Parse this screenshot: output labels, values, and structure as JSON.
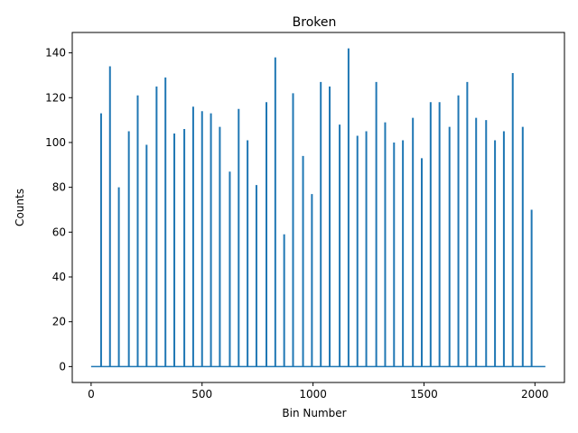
{
  "chart_data": {
    "type": "line",
    "title": "Broken",
    "xlabel": "Bin Number",
    "ylabel": "Counts",
    "xlim": [
      -85,
      2133
    ],
    "ylim": [
      -7.1,
      149.1
    ],
    "xticks": [
      0,
      500,
      1000,
      1500,
      2000
    ],
    "yticks": [
      0,
      20,
      40,
      60,
      80,
      100,
      120,
      140
    ],
    "baseline": {
      "x_start": 0,
      "x_end": 2047,
      "value": 0
    },
    "series_color": "#1f77b4",
    "grid": false,
    "legend": "none",
    "peaks": {
      "x": [
        45,
        85,
        125,
        170,
        210,
        250,
        295,
        335,
        375,
        420,
        460,
        500,
        540,
        580,
        625,
        665,
        705,
        745,
        790,
        830,
        870,
        910,
        955,
        995,
        1035,
        1075,
        1120,
        1160,
        1200,
        1240,
        1285,
        1325,
        1365,
        1405,
        1450,
        1490,
        1530,
        1570,
        1615,
        1655,
        1695,
        1735,
        1780,
        1820,
        1860,
        1900,
        1945,
        1985
      ],
      "values": [
        113,
        134,
        80,
        105,
        121,
        99,
        125,
        129,
        104,
        106,
        116,
        114,
        113,
        107,
        87,
        115,
        101,
        81,
        118,
        138,
        59,
        122,
        94,
        77,
        127,
        125,
        108,
        142,
        103,
        105,
        127,
        109,
        100,
        101,
        111,
        93,
        118,
        118,
        107,
        121,
        127,
        111,
        110,
        101,
        105,
        131,
        107,
        70
      ]
    }
  }
}
